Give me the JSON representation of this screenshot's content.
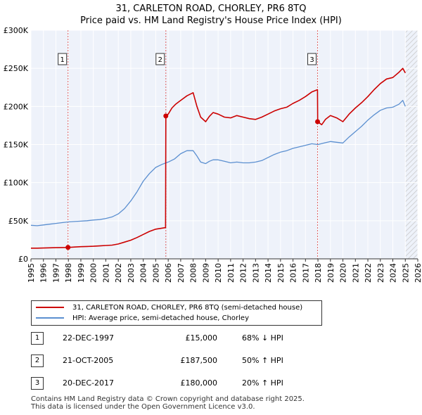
{
  "chart_data": {
    "type": "line",
    "title": "31, CARLETON ROAD, CHORLEY, PR6 8TQ",
    "subtitle": "Price paid vs. HM Land Registry's House Price Index (HPI)",
    "xlim": [
      1995,
      2026
    ],
    "ylim": [
      0,
      300000
    ],
    "xticks": [
      "1995",
      "1996",
      "1997",
      "1998",
      "1999",
      "2000",
      "2001",
      "2002",
      "2003",
      "2004",
      "2005",
      "2006",
      "2007",
      "2008",
      "2009",
      "2010",
      "2011",
      "2012",
      "2013",
      "2014",
      "2015",
      "2016",
      "2017",
      "2018",
      "2019",
      "2020",
      "2021",
      "2022",
      "2023",
      "2024",
      "2025",
      "2026"
    ],
    "yticks": [
      {
        "value": 0,
        "label": "£0"
      },
      {
        "value": 50000,
        "label": "£50K"
      },
      {
        "value": 100000,
        "label": "£100K"
      },
      {
        "value": 150000,
        "label": "£150K"
      },
      {
        "value": 200000,
        "label": "£200K"
      },
      {
        "value": 250000,
        "label": "£250K"
      },
      {
        "value": 300000,
        "label": "£300K"
      }
    ],
    "series": [
      {
        "name": "31, CARLETON ROAD, CHORLEY, PR6 8TQ (semi-detached house)",
        "color": "#cc0000",
        "x": [
          1995.0,
          1995.5,
          1996.0,
          1996.5,
          1997.0,
          1997.5,
          1997.97,
          1998.5,
          1999.0,
          1999.5,
          2000.0,
          2000.5,
          2001.0,
          2001.5,
          2002.0,
          2002.5,
          2003.0,
          2003.5,
          2004.0,
          2004.5,
          2005.0,
          2005.79,
          2005.81,
          2006.0,
          2006.3,
          2006.6,
          2007.0,
          2007.5,
          2008.0,
          2008.3,
          2008.6,
          2009.0,
          2009.3,
          2009.6,
          2010.0,
          2010.5,
          2011.0,
          2011.5,
          2012.0,
          2012.5,
          2013.0,
          2013.5,
          2014.0,
          2014.5,
          2015.0,
          2015.5,
          2016.0,
          2016.5,
          2017.0,
          2017.5,
          2017.96,
          2017.98,
          2018.3,
          2018.6,
          2019.0,
          2019.5,
          2020.0,
          2020.5,
          2021.0,
          2021.5,
          2022.0,
          2022.5,
          2023.0,
          2023.5,
          2024.0,
          2024.5,
          2024.8,
          2025.0
        ],
        "values": [
          14000,
          14000,
          14200,
          14500,
          14700,
          14900,
          15000,
          15500,
          16000,
          16200,
          16500,
          17000,
          17500,
          18000,
          19500,
          22000,
          24500,
          28000,
          32000,
          36000,
          39000,
          41000,
          187500,
          190000,
          198000,
          203000,
          208000,
          214000,
          218000,
          200000,
          186000,
          180000,
          187000,
          192000,
          190000,
          186000,
          185000,
          188000,
          186000,
          184000,
          183000,
          186000,
          190000,
          194000,
          197000,
          199000,
          204000,
          208000,
          213000,
          219000,
          222000,
          180000,
          176000,
          183000,
          188000,
          185000,
          180000,
          190000,
          198000,
          205000,
          213000,
          222000,
          230000,
          236000,
          238000,
          245000,
          250000,
          244000
        ]
      },
      {
        "name": "HPI: Average price, semi-detached house, Chorley",
        "color": "#5b8fd0",
        "x": [
          1995.0,
          1995.5,
          1996.0,
          1996.5,
          1997.0,
          1997.5,
          1998.0,
          1998.5,
          1999.0,
          1999.5,
          2000.0,
          2000.5,
          2001.0,
          2001.5,
          2002.0,
          2002.5,
          2003.0,
          2003.5,
          2004.0,
          2004.5,
          2005.0,
          2005.5,
          2006.0,
          2006.5,
          2007.0,
          2007.5,
          2008.0,
          2008.3,
          2008.6,
          2009.0,
          2009.3,
          2009.6,
          2010.0,
          2010.5,
          2011.0,
          2011.5,
          2012.0,
          2012.5,
          2013.0,
          2013.5,
          2014.0,
          2014.5,
          2015.0,
          2015.5,
          2016.0,
          2016.5,
          2017.0,
          2017.5,
          2018.0,
          2018.5,
          2019.0,
          2019.5,
          2020.0,
          2020.5,
          2021.0,
          2021.5,
          2022.0,
          2022.5,
          2023.0,
          2023.5,
          2024.0,
          2024.5,
          2024.8,
          2025.0
        ],
        "values": [
          44000,
          43500,
          44500,
          45500,
          46500,
          47500,
          48500,
          49000,
          49500,
          50000,
          51000,
          51500,
          53000,
          55000,
          59000,
          66000,
          76000,
          88000,
          102000,
          112000,
          120000,
          124000,
          127000,
          131000,
          138000,
          142000,
          142000,
          135000,
          127000,
          125000,
          128000,
          130000,
          130000,
          128000,
          126000,
          127000,
          126000,
          126000,
          127000,
          129000,
          133000,
          137000,
          140000,
          142000,
          145000,
          147000,
          149000,
          151000,
          150000,
          152000,
          154000,
          153000,
          152000,
          160000,
          167000,
          174000,
          182000,
          189000,
          195000,
          198000,
          199000,
          203000,
          208000,
          200000
        ]
      }
    ],
    "sales": [
      {
        "num": "1",
        "x": 1997.97,
        "value": 15000,
        "date": "22-DEC-1997",
        "price": "£15,000",
        "hpi": "68% ↓ HPI"
      },
      {
        "num": "2",
        "x": 2005.81,
        "value": 187500,
        "date": "21-OCT-2005",
        "price": "£187,500",
        "hpi": "50% ↑ HPI"
      },
      {
        "num": "3",
        "x": 2017.97,
        "value": 180000,
        "date": "20-DEC-2017",
        "price": "£180,000",
        "hpi": "20% ↑ HPI"
      }
    ]
  },
  "footer": {
    "line1": "Contains HM Land Registry data © Crown copyright and database right 2025.",
    "line2": "This data is licensed under the Open Government Licence v3.0."
  },
  "colors": {
    "price_line": "#cc0000",
    "hpi_line": "#5b8fd0",
    "plot_bg": "#eef2fa",
    "grid": "#ffffff"
  }
}
